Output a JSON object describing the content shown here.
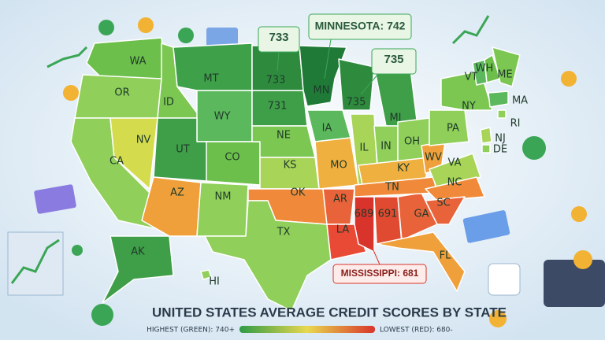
{
  "map": {
    "title": "UNITED STATES AVERAGE CREDIT SCORES BY STATE",
    "legend": {
      "highest": "HIGHEST (GREEN): 740+",
      "lowest": "LOWEST (RED): 680-"
    },
    "callouts": [
      "733",
      "MINNESOTA: 742",
      "735",
      "MISSISSIPPI: 681"
    ],
    "regions": [
      "WA",
      "OR",
      "CA",
      "NV",
      "ID",
      "MT",
      "WY",
      "UT",
      "CO",
      "AZ",
      "NM",
      "733",
      "731",
      "NE",
      "KS",
      "OK",
      "TX",
      "MN",
      "IA",
      "MO",
      "AR",
      "LA",
      "689",
      "691",
      "GA",
      "FL",
      "735",
      "MI",
      "IL",
      "IN",
      "OH",
      "KY",
      "TN",
      "WV",
      "VA",
      "NC",
      "SC",
      "PA",
      "NY",
      "VT",
      "WH",
      "ME",
      "MA",
      "RI",
      "NJ",
      "DE",
      "AK",
      "HI"
    ]
  }
}
